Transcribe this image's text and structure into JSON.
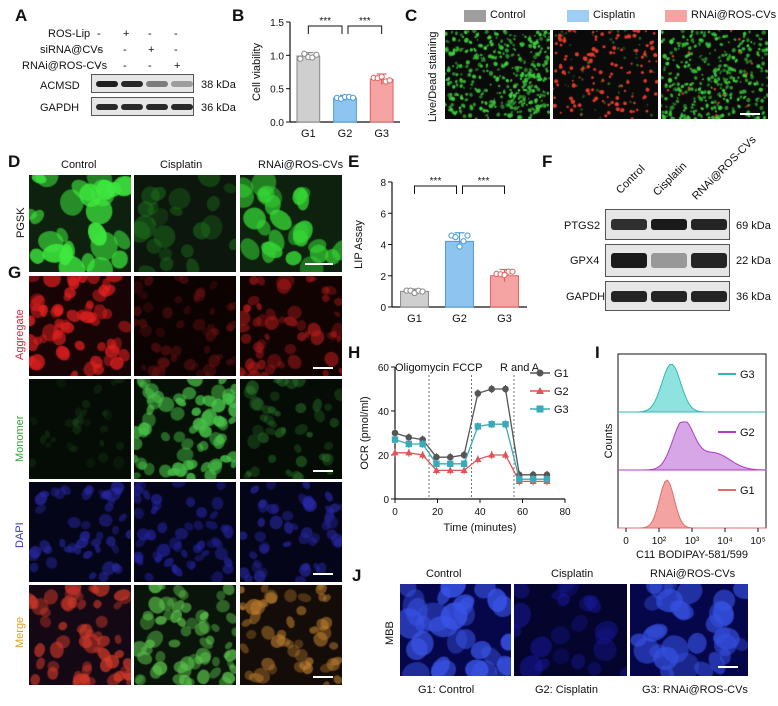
{
  "panels": {
    "A": "A",
    "B": "B",
    "C": "C",
    "D": "D",
    "E": "E",
    "F": "F",
    "G": "G",
    "H": "H",
    "I": "I",
    "J": "J"
  },
  "panelA": {
    "conditions": [
      "ROS-Lip",
      "siRNA@CVs",
      "RNAi@ROS-CVs"
    ],
    "signs": [
      [
        "-",
        "+",
        "-",
        "-"
      ],
      [
        "-",
        "-",
        "+",
        "-"
      ],
      [
        "-",
        "-",
        "-",
        "+"
      ]
    ],
    "rows": [
      {
        "name": "ACMSD",
        "kda": "38 kDa",
        "intensity": [
          0.95,
          0.9,
          0.5,
          0.35
        ]
      },
      {
        "name": "GAPDH",
        "kda": "36 kDa",
        "intensity": [
          0.9,
          0.9,
          0.9,
          0.9
        ]
      }
    ]
  },
  "panelB_chart": {
    "type": "bar",
    "categories": [
      "G1",
      "G2",
      "G3"
    ],
    "values": [
      0.99,
      0.36,
      0.64
    ],
    "ylabel": "Cell viability",
    "ylim": [
      0,
      1.5
    ],
    "yticks": [
      0.0,
      0.5,
      1.0,
      1.5
    ],
    "significance": [
      "***",
      "***"
    ],
    "colors": [
      "#cfcfcf",
      "#8ec5f0",
      "#f5a3a3"
    ],
    "edge": [
      "#888888",
      "#4a9bd8",
      "#e06060"
    ]
  },
  "panelC": {
    "legend": [
      {
        "label": "Control",
        "color": "#9e9e9e"
      },
      {
        "label": "Cisplatin",
        "color": "#9fcdf3"
      },
      {
        "label": "RNAi@ROS-CVs",
        "color": "#f6a3a3"
      }
    ],
    "ylabel": "Live/Dead staining"
  },
  "panelD": {
    "columns": [
      "Control",
      "Cisplatin",
      "RNAi@ROS-CVs"
    ],
    "rowlabel": "PGSK"
  },
  "panelE_chart": {
    "type": "bar",
    "categories": [
      "G1",
      "G2",
      "G3"
    ],
    "values": [
      1.0,
      4.2,
      2.0
    ],
    "ylabel": "LIP Assay",
    "ylim": [
      0,
      8
    ],
    "yticks": [
      0,
      2,
      4,
      6,
      8
    ],
    "significance": [
      "***",
      "***"
    ],
    "colors": [
      "#cfcfcf",
      "#8ec5f0",
      "#f5a3a3"
    ],
    "edge": [
      "#888888",
      "#4a9bd8",
      "#e06060"
    ]
  },
  "panelF": {
    "columns": [
      "Control",
      "Cisplatin",
      "RNAi@ROS-CVs"
    ],
    "rows": [
      {
        "name": "PTGS2",
        "kda": "69 kDa"
      },
      {
        "name": "GPX4",
        "kda": "22 kDa"
      },
      {
        "name": "GAPDH",
        "kda": "36 kDa"
      }
    ]
  },
  "panelG": {
    "rows": [
      "Aggregate",
      "Monomer",
      "DAPI",
      "Merge"
    ]
  },
  "panelH_chart": {
    "type": "line",
    "x": [
      0,
      6.5,
      13,
      19.5,
      26,
      32.5,
      39,
      45.5,
      52,
      58.5,
      65,
      71.5
    ],
    "series": [
      {
        "name": "G1",
        "values": [
          30,
          28,
          27,
          19,
          19,
          20,
          48,
          50,
          50,
          11,
          11,
          11
        ],
        "color": "#555555"
      },
      {
        "name": "G2",
        "values": [
          21,
          21,
          20,
          13,
          13,
          13,
          18,
          20,
          20,
          8,
          8,
          8
        ],
        "color": "#e05555"
      },
      {
        "name": "G3",
        "values": [
          27,
          25,
          25,
          16,
          16,
          16,
          33,
          34,
          34,
          9,
          9,
          9
        ],
        "color": "#3aa9b8"
      }
    ],
    "xlabel": "Time (minutes)",
    "ylabel": "OCR (pmol/ml)",
    "xlim": [
      0,
      80
    ],
    "ylim": [
      0,
      60
    ],
    "xticks": [
      0,
      20,
      40,
      60,
      80
    ],
    "yticks": [
      0,
      20,
      40,
      60
    ],
    "annotations": [
      "Oligomycin",
      "FCCP",
      "R and A"
    ]
  },
  "panelI": {
    "series": [
      {
        "name": "G3",
        "color": "#2fb9b5",
        "fill": "#8fe3de"
      },
      {
        "name": "G2",
        "color": "#b13bc4",
        "fill": "#d6a6e6"
      },
      {
        "name": "G1",
        "color": "#e06c6c",
        "fill": "#f4a3a3"
      }
    ],
    "ylabel": "Counts",
    "xlabel": "C11 BODIPAY-581/599",
    "xticks": [
      "0",
      "10²",
      "10³",
      "10⁴",
      "10⁵"
    ]
  },
  "panelJ": {
    "columns": [
      "Control",
      "Cisplatin",
      "RNAi@ROS-CVs"
    ],
    "rowlabel": "MBB",
    "captions": [
      "G1: Control",
      "G2: Cisplatin",
      "G3: RNAi@ROS-CVs"
    ]
  }
}
